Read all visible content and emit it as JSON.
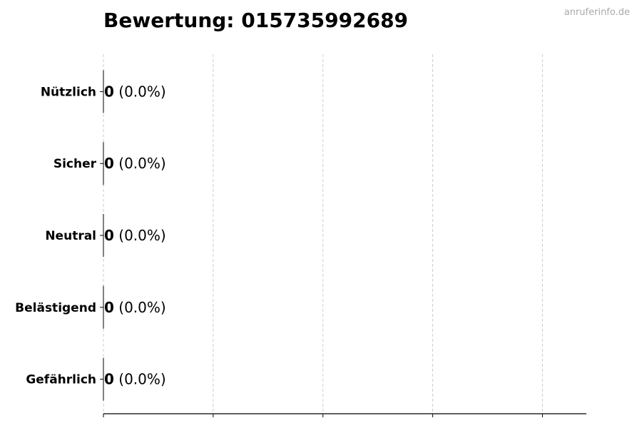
{
  "watermark": "anruferinfo.de",
  "chart_data": {
    "type": "bar",
    "orientation": "horizontal",
    "title": "Bewertung: 015735992689",
    "categories": [
      "Nützlich",
      "Sicher",
      "Neutral",
      "Belästigend",
      "Gefährlich"
    ],
    "values": [
      0,
      0,
      0,
      0,
      0
    ],
    "data_labels": [
      {
        "count": "0",
        "percent": "(0.0%)"
      },
      {
        "count": "0",
        "percent": "(0.0%)"
      },
      {
        "count": "0",
        "percent": "(0.0%)"
      },
      {
        "count": "0",
        "percent": "(0.0%)"
      },
      {
        "count": "0",
        "percent": "(0.0%)"
      }
    ],
    "xticks": [
      0,
      1,
      2,
      3,
      4
    ],
    "xlim": [
      0,
      4.4
    ],
    "grid": "x dashed",
    "colors": {
      "bar_edge": "#000000",
      "grid": "#cccccc",
      "axis": "#000000"
    }
  }
}
